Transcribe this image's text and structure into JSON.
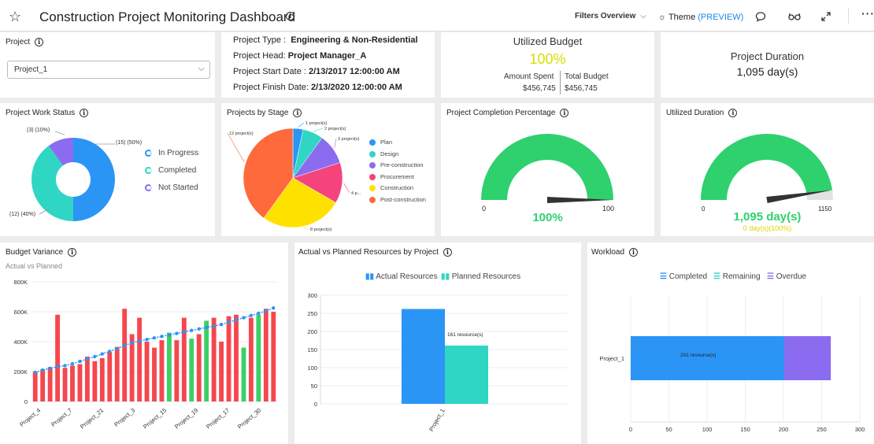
{
  "header": {
    "title": "Construction Project Monitoring Dashboard",
    "filters_label": "Filters Overview",
    "theme_label": "Theme",
    "theme_preview": "(PREVIEW)"
  },
  "project_selector": {
    "title": "Project",
    "selected": "Project_1"
  },
  "project_info": {
    "type_label": "Project Type :",
    "type_value": "Engineering & Non-Residential",
    "head_label": "Project Head:",
    "head_value": "Project Manager_A",
    "start_label": "Project Start Date :",
    "start_value": "2/13/2017 12:00:00 AM",
    "finish_label": "Project Finish Date:",
    "finish_value": "2/13/2020 12:00:00 AM"
  },
  "utilized_budget": {
    "title": "Utilized Budget",
    "percent": "100%",
    "spent_label": "Amount Spent",
    "spent_value": "$456,745",
    "total_label": "Total Budget",
    "total_value": "$456,745",
    "percent_color": "#d4e000"
  },
  "project_duration": {
    "title": "Project Duration",
    "value": "1,095 day(s)"
  },
  "work_status": {
    "title": "Project Work Status",
    "chart_data": {
      "type": "pie",
      "slices": [
        {
          "name": "In Progress",
          "value": 15,
          "label": "(15) (50%)",
          "color": "#2b95f6"
        },
        {
          "name": "Completed",
          "value": 12,
          "label": "(12) (40%)",
          "color": "#2fd6c3"
        },
        {
          "name": "Not Started",
          "value": 3,
          "label": "(3) (10%)",
          "color": "#8b6cf0"
        }
      ]
    }
  },
  "projects_by_stage": {
    "title": "Projects by Stage",
    "chart_data": {
      "type": "pie",
      "slices": [
        {
          "name": "Plan",
          "value": 1,
          "label": "1 project(s)",
          "color": "#2b95f6"
        },
        {
          "name": "Design",
          "value": 2,
          "label": "2 project(s)",
          "color": "#2fd6c3"
        },
        {
          "name": "Pre-construction",
          "value": 3,
          "label": "3 project(s)",
          "color": "#8b6cf0"
        },
        {
          "name": "Procurement",
          "value": 4,
          "label": "4 p...",
          "color": "#f5437c"
        },
        {
          "name": "Construction",
          "value": 8,
          "label": "8 project(s)",
          "color": "#ffe100"
        },
        {
          "name": "Post-construction",
          "value": 12,
          "label": "12 project(s)",
          "color": "#ff6a3d"
        }
      ]
    }
  },
  "completion_gauge": {
    "title": "Project Completion Percentage",
    "min": "0",
    "max": "100",
    "value": 100,
    "value_label": "100%",
    "color": "#2ed16e"
  },
  "duration_gauge": {
    "title": "Utilized Duration",
    "min": "0",
    "max": "1150",
    "value": 1095,
    "value_label": "1,095 day(s)",
    "sub_label": "0 day(s)(100%)",
    "color": "#2ed16e",
    "sub_color": "#e0d400"
  },
  "budget_variance": {
    "title": "Budget Variance",
    "subtitle": "Actual vs Planned",
    "chart_data": {
      "type": "bar",
      "yticks": [
        "0",
        "200K",
        "400K",
        "600K",
        "800K"
      ],
      "ylim": [
        0,
        800000
      ],
      "xticks": [
        "Project_4",
        "Project_7",
        "Project_21",
        "Project_3",
        "Project_15",
        "Project_19",
        "Project_17",
        "Project_30"
      ],
      "actual": [
        200000,
        215000,
        230000,
        580000,
        225000,
        240000,
        250000,
        300000,
        270000,
        290000,
        330000,
        365000,
        620000,
        450000,
        560000,
        400000,
        360000,
        410000,
        460000,
        410000,
        560000,
        420000,
        450000,
        540000,
        560000,
        400000,
        570000,
        580000,
        360000,
        560000,
        580000,
        620000,
        600000
      ],
      "actual_colors": [
        "r",
        "r",
        "r",
        "r",
        "r",
        "r",
        "r",
        "r",
        "r",
        "r",
        "r",
        "r",
        "r",
        "r",
        "r",
        "r",
        "r",
        "r",
        "g",
        "r",
        "r",
        "g",
        "r",
        "g",
        "r",
        "r",
        "r",
        "r",
        "g",
        "r",
        "g",
        "r",
        "r"
      ],
      "planned": [
        195000,
        210000,
        222000,
        232000,
        240000,
        252000,
        268000,
        285000,
        300000,
        318000,
        335000,
        352000,
        375000,
        392000,
        405000,
        415000,
        425000,
        435000,
        445000,
        455000,
        465000,
        475000,
        485000,
        495000,
        505000,
        515000,
        530000,
        545000,
        560000,
        575000,
        590000,
        605000,
        625000
      ]
    },
    "bar_red": "#f5474e",
    "bar_green": "#3ccf66",
    "line_color": "#2b95f6"
  },
  "resources": {
    "title": "Actual vs Planned Resources by Project",
    "legend_actual": "Actual Resources",
    "legend_planned": "Planned Resources",
    "chart_data": {
      "type": "bar",
      "categories": [
        "Project_1"
      ],
      "series": [
        {
          "name": "Actual Resources",
          "values": [
            262
          ],
          "color": "#2b95f6"
        },
        {
          "name": "Planned Resources",
          "values": [
            161
          ],
          "color": "#2fd6c3"
        }
      ],
      "yticks": [
        "0",
        "50",
        "100",
        "150",
        "200",
        "250",
        "300"
      ],
      "ylim": [
        0,
        300
      ],
      "data_label": "161 resource(s)"
    }
  },
  "workload": {
    "title": "Workload",
    "legend": [
      "Completed",
      "Remaining",
      "Overdue"
    ],
    "legend_colors": [
      "#2b95f6",
      "#2fd6c3",
      "#8b6cf0"
    ],
    "chart_data": {
      "type": "bar",
      "categories": [
        "Project_1"
      ],
      "series": [
        {
          "name": "Completed",
          "values": [
            201
          ],
          "color": "#2b95f6"
        },
        {
          "name": "Overdue",
          "values": [
            61
          ],
          "color": "#8b6cf0"
        }
      ],
      "xticks": [
        "0",
        "50",
        "100",
        "150",
        "200",
        "250",
        "300"
      ],
      "xlim": [
        0,
        300
      ],
      "data_label": "201 resource(s)"
    }
  }
}
